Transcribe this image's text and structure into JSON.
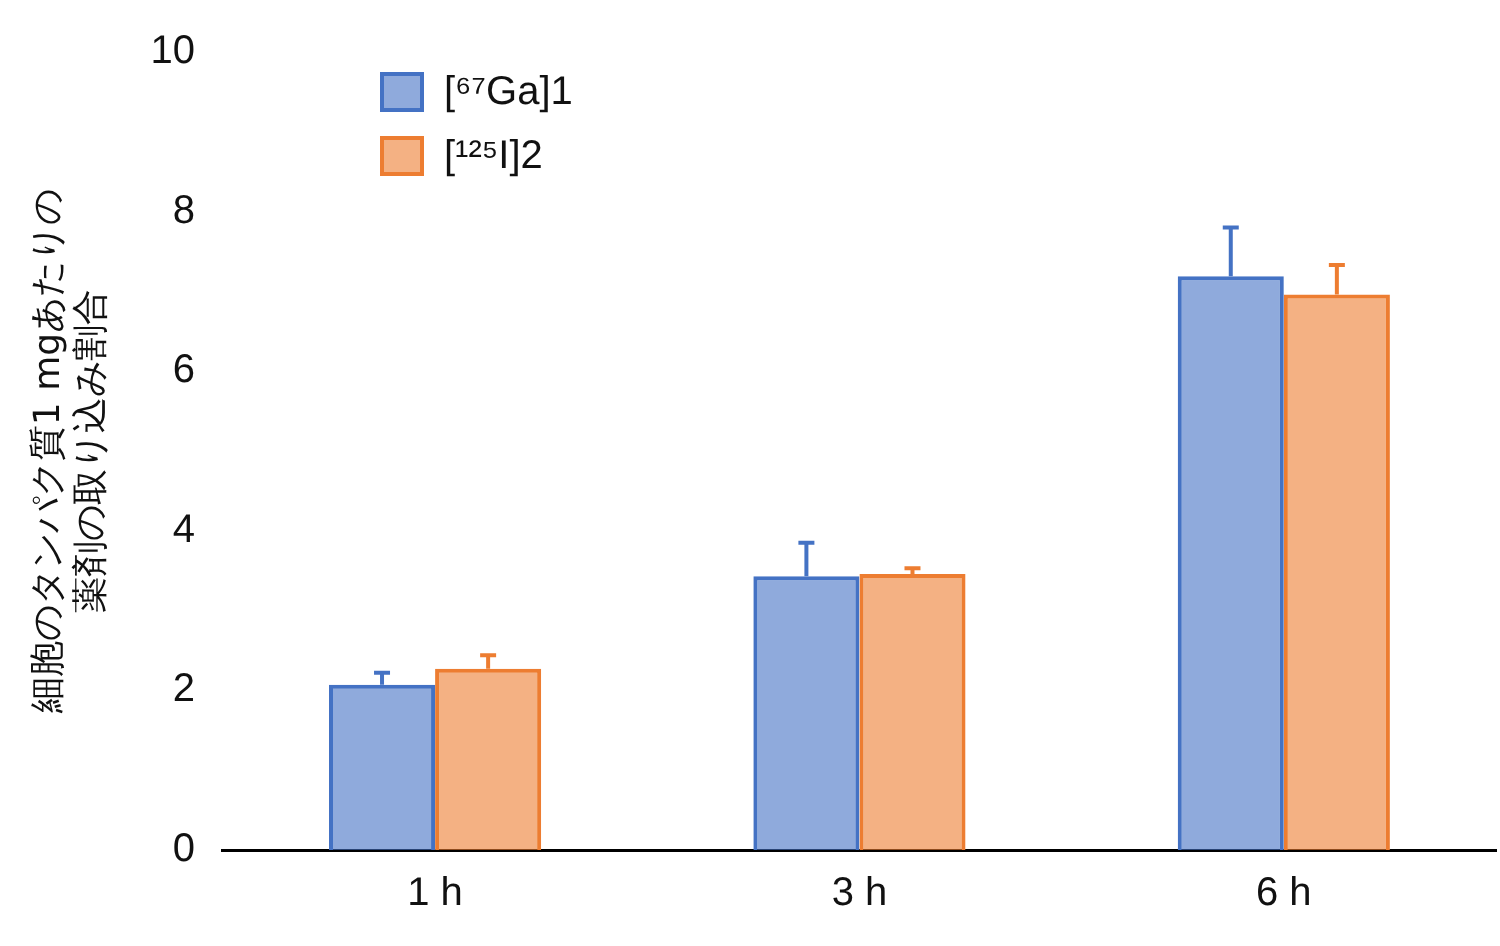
{
  "chart_data": {
    "type": "bar",
    "ylabel": "細胞のタンパク質1 mgあたりの薬剤の取り込み割合",
    "categories": [
      "1 h",
      "3 h",
      "6 h"
    ],
    "series": [
      {
        "name": "[⁶⁷Ga]1",
        "color": "#4472c4",
        "values": [
          2.07,
          3.43,
          7.19
        ],
        "errors": [
          [
            2.07,
            2.22
          ],
          [
            3.43,
            3.85
          ],
          [
            7.19,
            7.8
          ]
        ]
      },
      {
        "name": "[¹²⁵I]2",
        "color": "#ed7d31",
        "values": [
          2.27,
          3.46,
          6.96
        ],
        "errors": [
          [
            2.27,
            2.44
          ],
          [
            3.46,
            3.53
          ],
          [
            6.96,
            7.33
          ]
        ]
      }
    ],
    "ylim": [
      0,
      10
    ],
    "yticks": [
      0,
      2,
      4,
      6,
      8,
      10
    ],
    "grid": false,
    "legend": "top left"
  }
}
